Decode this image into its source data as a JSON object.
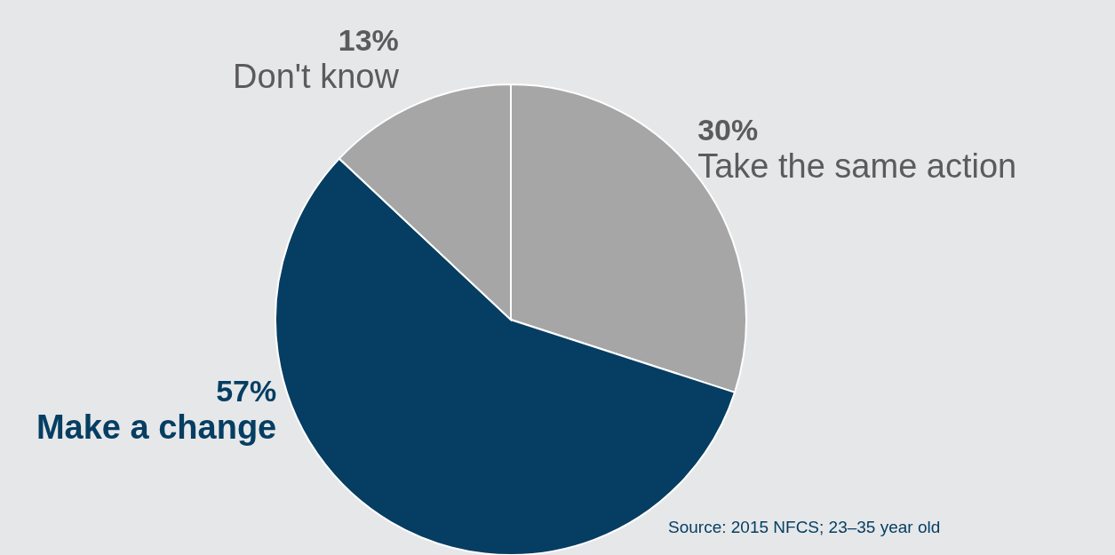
{
  "chart_data": {
    "type": "pie",
    "categories": [
      "Take the same action",
      "Make a change",
      "Don't know"
    ],
    "values": [
      30,
      57,
      13
    ],
    "colors": [
      "#a6a6a6",
      "#053e62",
      "#a6a6a6"
    ],
    "value_labels": [
      "30%",
      "57%",
      "13%"
    ],
    "annotations": [
      "Source: 2015 NFCS; 23–35 year old"
    ]
  }
}
